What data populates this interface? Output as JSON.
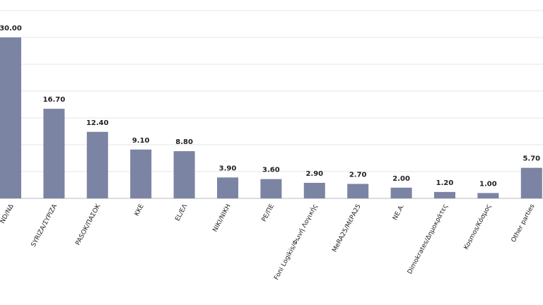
{
  "chart_data": {
    "type": "bar",
    "categories": [
      "ND/ΝΔ",
      "SYRIZA/ΣΥΡΙΖΑ",
      "PASOK/ΠΑΣΟΚ",
      "KKE",
      "EL/ΕΛ",
      "NIKI/ΝΙΚΗ",
      "PE/ΠΕ",
      "Foni Logikis/Φωνή Λογικής",
      "MeRA25/ΜέΡΑ25",
      "NE.A.",
      "Dimokrates/Δημοκράτες",
      "Kosmos/Κόσμος",
      "Other parties"
    ],
    "values": [
      30,
      16.7,
      12.4,
      9.1,
      8.8,
      3.9,
      3.6,
      2.9,
      2.7,
      2,
      1.2,
      1,
      5.7
    ],
    "value_labels": [
      "30.00",
      "16.70",
      "12.40",
      "9.10",
      "8.80",
      "3.90",
      "3.60",
      "2.90",
      "2.70",
      "2.00",
      "1.20",
      "1.00",
      "5.70"
    ],
    "color": "#7b84a3",
    "ylim": [
      0,
      35
    ],
    "yticks": [
      0,
      5,
      10,
      15,
      20,
      25,
      30,
      35
    ],
    "grid": true
  }
}
